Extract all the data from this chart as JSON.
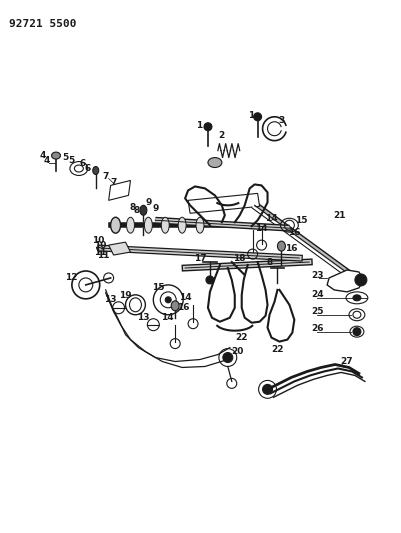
{
  "title_code": "92721 5500",
  "bg_color": "#ffffff",
  "line_color": "#1a1a1a",
  "fig_width": 4.02,
  "fig_height": 5.33,
  "dpi": 100
}
